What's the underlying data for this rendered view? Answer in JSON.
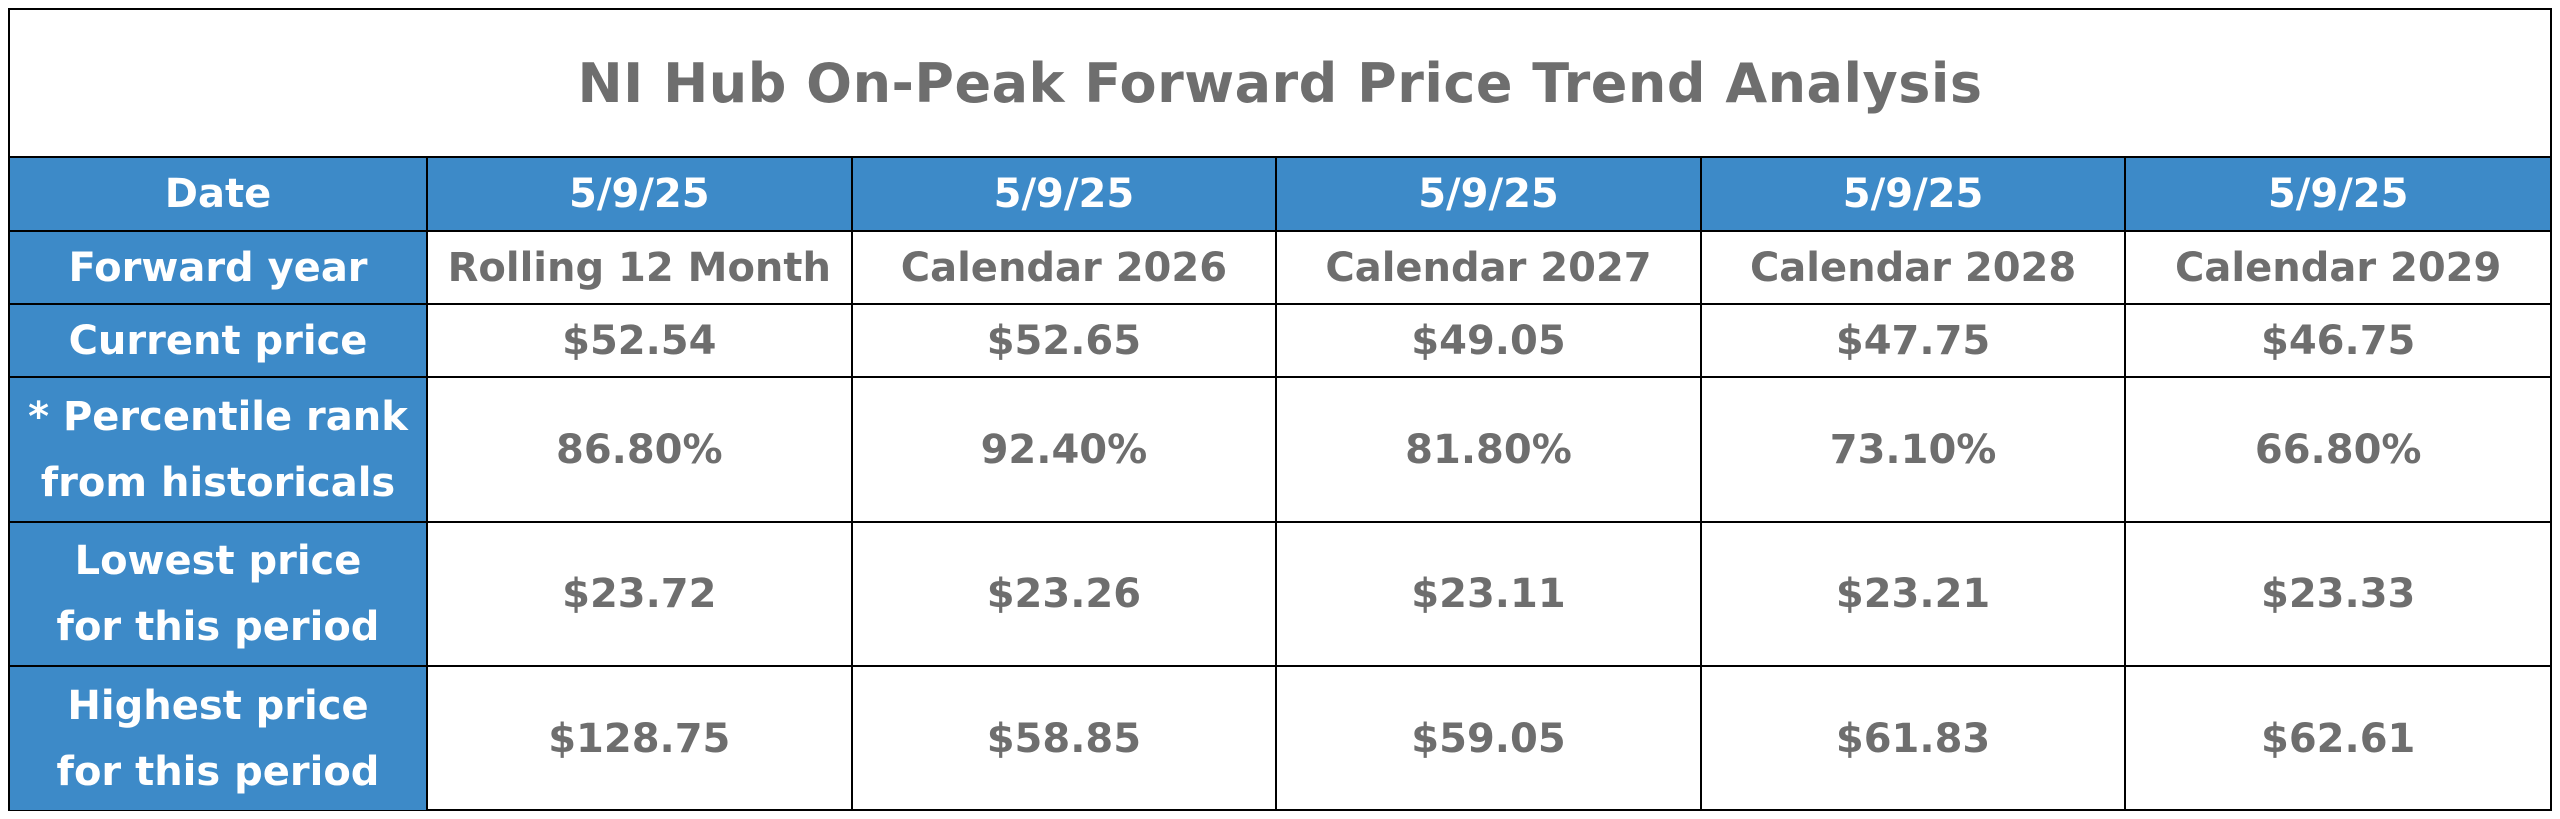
{
  "title": "NI Hub On-Peak Forward Price Trend Analysis",
  "header": {
    "label": "Date",
    "dates": [
      "5/9/25",
      "5/9/25",
      "5/9/25",
      "5/9/25",
      "5/9/25"
    ]
  },
  "rows": {
    "forward_year": {
      "label": "Forward year",
      "values": [
        "Rolling 12 Month",
        "Calendar 2026",
        "Calendar 2027",
        "Calendar 2028",
        "Calendar 2029"
      ]
    },
    "current_price": {
      "label": "Current price",
      "values": [
        "$52.54",
        "$52.65",
        "$49.05",
        "$47.75",
        "$46.75"
      ]
    },
    "percentile_rank": {
      "label_line1": "* Percentile rank",
      "label_line2": "from historicals",
      "values": [
        "86.80%",
        "92.40%",
        "81.80%",
        "73.10%",
        "66.80%"
      ]
    },
    "lowest_price": {
      "label_line1": "Lowest price",
      "label_line2": "for this period",
      "values": [
        "$23.72",
        "$23.26",
        "$23.11",
        "$23.21",
        "$23.33"
      ]
    },
    "highest_price": {
      "label_line1": "Highest price",
      "label_line2": "for this period",
      "values": [
        "$128.75",
        "$58.85",
        "$59.05",
        "$61.83",
        "$62.61"
      ]
    }
  },
  "colors": {
    "header_blue": "#3d8ac8",
    "value_gray": "#6e6e6e",
    "border": "#000000"
  }
}
